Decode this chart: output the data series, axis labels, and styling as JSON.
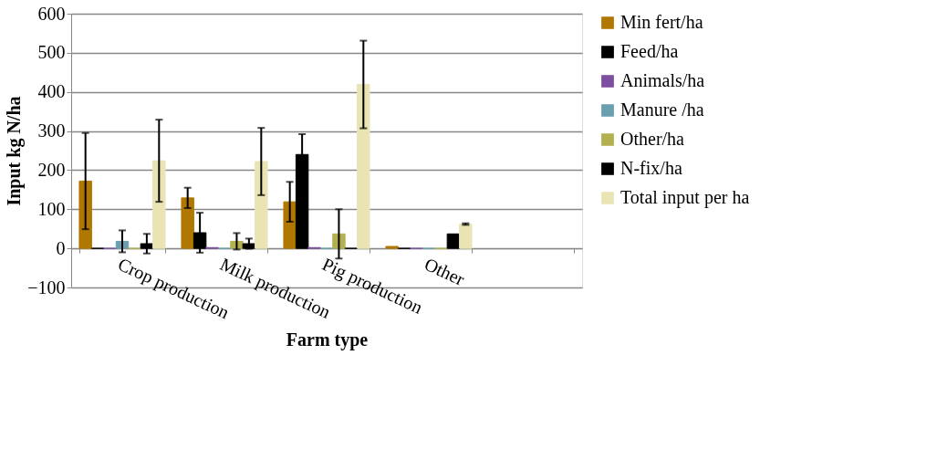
{
  "chart_data": {
    "type": "bar",
    "xlabel": "Farm type",
    "ylabel": "Input kg N/ha",
    "categories": [
      "Crop production",
      "Milk production",
      "Pig production",
      "Other",
      null
    ],
    "series": [
      {
        "name": "Min fert/ha",
        "color": "#b07800",
        "values": [
          172,
          129,
          119,
          5,
          null
        ],
        "errors": [
          123,
          26,
          51,
          null,
          null
        ]
      },
      {
        "name": "Feed/ha",
        "color": "#000000",
        "values": [
          0,
          40,
          240,
          0,
          null
        ],
        "errors": [
          null,
          51,
          52,
          null,
          null
        ]
      },
      {
        "name": "Animals/ha",
        "color": "#7e4ea0",
        "values": [
          0,
          2,
          2,
          0,
          null
        ]
      },
      {
        "name": "Manure /ha",
        "color": "#6a9fb0",
        "values": [
          18,
          0,
          0,
          0,
          null
        ],
        "errors": [
          28,
          null,
          null,
          null,
          null
        ]
      },
      {
        "name": "Other/ha",
        "color": "#b3b050",
        "values": [
          0,
          18,
          37,
          0,
          null
        ],
        "errors": [
          null,
          21,
          63,
          null,
          null
        ]
      },
      {
        "name": "N-fix/ha",
        "color": "#000000",
        "values": [
          12,
          12,
          0,
          37,
          null
        ],
        "errors": [
          25,
          13,
          null,
          null,
          null
        ]
      },
      {
        "name": "Total input per ha",
        "color": "#e8e4b4",
        "values": [
          224,
          222,
          419,
          62,
          null
        ],
        "errors": [
          105,
          86,
          112,
          2,
          null
        ]
      }
    ],
    "ylim": [
      -100,
      600
    ],
    "yticks": [
      -100,
      0,
      100,
      200,
      300,
      400,
      500,
      600
    ],
    "grid": "y",
    "legend": "right"
  }
}
